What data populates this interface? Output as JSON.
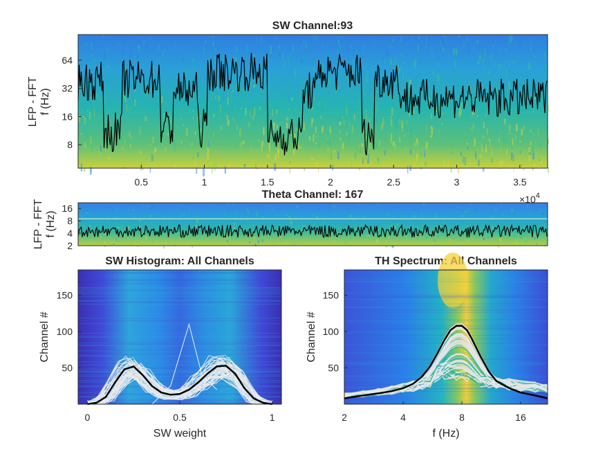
{
  "colors": {
    "spec_low": "#3a2fb0",
    "spec_mid": "#1fb8b0",
    "spec_high": "#f5d63a",
    "trace": "#000000",
    "light_lines": "#e8e8e8",
    "teal_lines": "#2ab5a0",
    "threshold_line": "#ffffcc"
  },
  "chart_data": [
    {
      "type": "heatmap",
      "title": "SW Channel:93",
      "ylabel_lines": [
        "LFP - FFT",
        "f (Hz)"
      ],
      "y_scale": "log2",
      "ylim": [
        4.5,
        120
      ],
      "yticks": [
        8,
        16,
        32,
        64
      ],
      "ytick_labels": [
        "8",
        "16",
        "32",
        "64"
      ],
      "xlim": [
        0,
        3.72
      ],
      "xticks": [
        0.5,
        1,
        1.5,
        2,
        2.5,
        3,
        3.5
      ],
      "xtick_labels": [
        "0.5",
        "1",
        "1.5",
        "2",
        "2.5",
        "3",
        "3.5"
      ],
      "x_exponent_label": "×10",
      "x_exponent_value": "4",
      "trace_segments": [
        {
          "x": [
            0,
            0.2
          ],
          "y": 38
        },
        {
          "x": [
            0.2,
            0.35
          ],
          "y": 11
        },
        {
          "x": [
            0.35,
            0.65
          ],
          "y": 40
        },
        {
          "x": [
            0.65,
            0.75
          ],
          "y": 12
        },
        {
          "x": [
            0.75,
            0.95
          ],
          "y": 30
        },
        {
          "x": [
            0.95,
            1.02
          ],
          "y": 12
        },
        {
          "x": [
            1.02,
            1.5
          ],
          "y": 48
        },
        {
          "x": [
            1.5,
            1.78
          ],
          "y": 10
        },
        {
          "x": [
            1.78,
            1.9
          ],
          "y": 30
        },
        {
          "x": [
            1.9,
            2.25
          ],
          "y": 48
        },
        {
          "x": [
            2.25,
            2.35
          ],
          "y": 10
        },
        {
          "x": [
            2.35,
            2.55
          ],
          "y": 40
        },
        {
          "x": [
            2.55,
            3.72
          ],
          "y": 25
        }
      ]
    },
    {
      "type": "heatmap",
      "title": "Theta Channel: 167",
      "ylabel_lines": [
        "LFP - FFT",
        "f (Hz)"
      ],
      "y_scale": "log2",
      "ylim": [
        2,
        22
      ],
      "yticks": [
        2,
        4,
        8,
        16
      ],
      "ytick_labels": [
        "2",
        "4",
        "8",
        "16"
      ],
      "xlim": [
        0,
        3.72
      ],
      "trace_mean_hz": 4.5,
      "threshold_hz": 9
    },
    {
      "type": "heatmap",
      "title": "SW Histogram: All Channels",
      "xlabel": "SW weight",
      "ylabel": "Channel #",
      "xlim": [
        -0.05,
        1.05
      ],
      "ylim": [
        0,
        185
      ],
      "xticks": [
        0,
        0.5,
        1
      ],
      "xtick_labels": [
        "0",
        "0.5",
        "1"
      ],
      "yticks": [
        50,
        100,
        150
      ],
      "ytick_labels": [
        "50",
        "100",
        "150"
      ],
      "mean_curve": {
        "x": [
          0.0,
          0.05,
          0.1,
          0.15,
          0.2,
          0.25,
          0.3,
          0.35,
          0.4,
          0.45,
          0.5,
          0.55,
          0.6,
          0.65,
          0.7,
          0.75,
          0.8,
          0.85,
          0.9,
          0.95,
          1.0
        ],
        "y": [
          0,
          2,
          10,
          30,
          48,
          52,
          40,
          25,
          16,
          13,
          14,
          20,
          30,
          42,
          52,
          53,
          42,
          22,
          8,
          2,
          0
        ]
      }
    },
    {
      "type": "heatmap",
      "title": "TH Spectrum: All Channels",
      "xlabel": "f (Hz)",
      "ylabel": "Channel #",
      "x_scale": "log2",
      "xlim": [
        2,
        22
      ],
      "ylim": [
        0,
        185
      ],
      "xticks": [
        2,
        4,
        8,
        16
      ],
      "xtick_labels": [
        "2",
        "4",
        "8",
        "16"
      ],
      "yticks": [
        50,
        100,
        150
      ],
      "ytick_labels": [
        "50",
        "100",
        "150"
      ],
      "mean_curve": {
        "x": [
          2,
          2.5,
          3,
          3.5,
          4,
          4.5,
          5,
          5.5,
          6,
          6.5,
          7,
          7.5,
          8,
          8.5,
          9,
          10,
          11,
          12,
          14,
          16,
          19,
          22
        ],
        "y": [
          8,
          12,
          15,
          18,
          22,
          28,
          38,
          52,
          70,
          88,
          102,
          108,
          108,
          102,
          90,
          65,
          45,
          32,
          22,
          16,
          12,
          8
        ]
      }
    }
  ]
}
